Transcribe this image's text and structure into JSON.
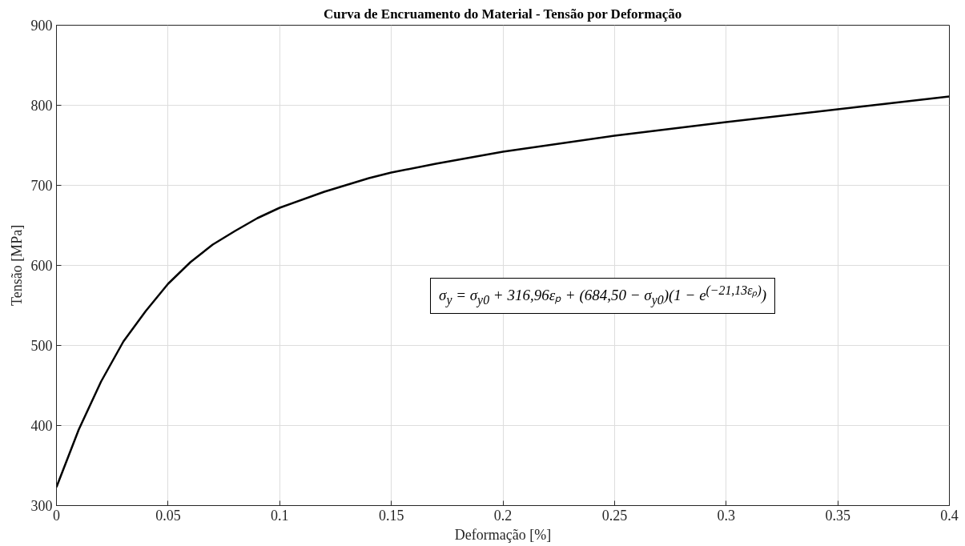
{
  "chart_data": {
    "type": "line",
    "title": "Curva de Encruamento do Material - Tensão por Deformação",
    "xlabel": "Deformação [%]",
    "ylabel": "Tensão [MPa]",
    "x": [
      0,
      0.01,
      0.02,
      0.03,
      0.04,
      0.05,
      0.06,
      0.07,
      0.08,
      0.09,
      0.1,
      0.12,
      0.14,
      0.15,
      0.17,
      0.2,
      0.25,
      0.3,
      0.35,
      0.4
    ],
    "series": [
      {
        "color": "#000000",
        "values": [
          323,
          395,
          455,
          505,
          543,
          577,
          604,
          626,
          643,
          659,
          672,
          692,
          709,
          716,
          727,
          742,
          762,
          779,
          795,
          811
        ]
      }
    ],
    "xlim": [
      0,
      0.4
    ],
    "xticks": [
      0,
      0.05,
      0.1,
      0.15,
      0.2,
      0.25,
      0.3,
      0.35,
      0.4
    ],
    "ylim": [
      300,
      900
    ],
    "yticks": [
      300,
      400,
      500,
      600,
      700,
      800,
      900
    ],
    "grid": true,
    "marker": "none",
    "line_style": "solid",
    "annotations": [
      "σ$_{y}$ = σ$_{y0}$ + 316,96εₚ + (684,50 − σ$_{y0}$)(1 − e$^{(−21,13εₚ)}$)"
    ]
  }
}
